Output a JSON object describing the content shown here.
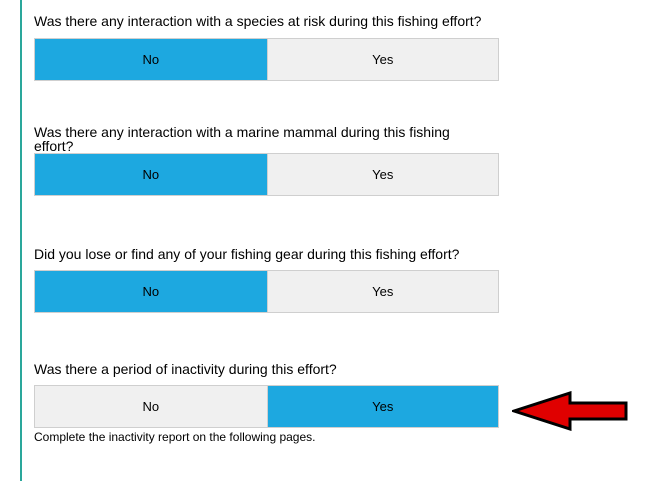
{
  "questions": [
    {
      "text": "Was there any interaction with a species at risk during this fishing effort?",
      "options": [
        "No",
        "Yes"
      ],
      "selected": "No"
    },
    {
      "text": "Was there any interaction with a marine mammal during this fishing effort?",
      "options": [
        "No",
        "Yes"
      ],
      "selected": "No"
    },
    {
      "text": "Did you lose or find any of your fishing gear during this fishing effort?",
      "options": [
        "No",
        "Yes"
      ],
      "selected": "No"
    },
    {
      "text": "Was there a period of inactivity during this effort?",
      "options": [
        "No",
        "Yes"
      ],
      "selected": "Yes"
    }
  ],
  "inactivity_note": "Complete the inactivity report on the following pages.",
  "colors": {
    "selected": "#1da8e0",
    "unselected": "#f0f0f0",
    "arrow": "#e00000",
    "rule": "#2aa79b"
  },
  "icons": {
    "pointer": "red-arrow-icon"
  }
}
